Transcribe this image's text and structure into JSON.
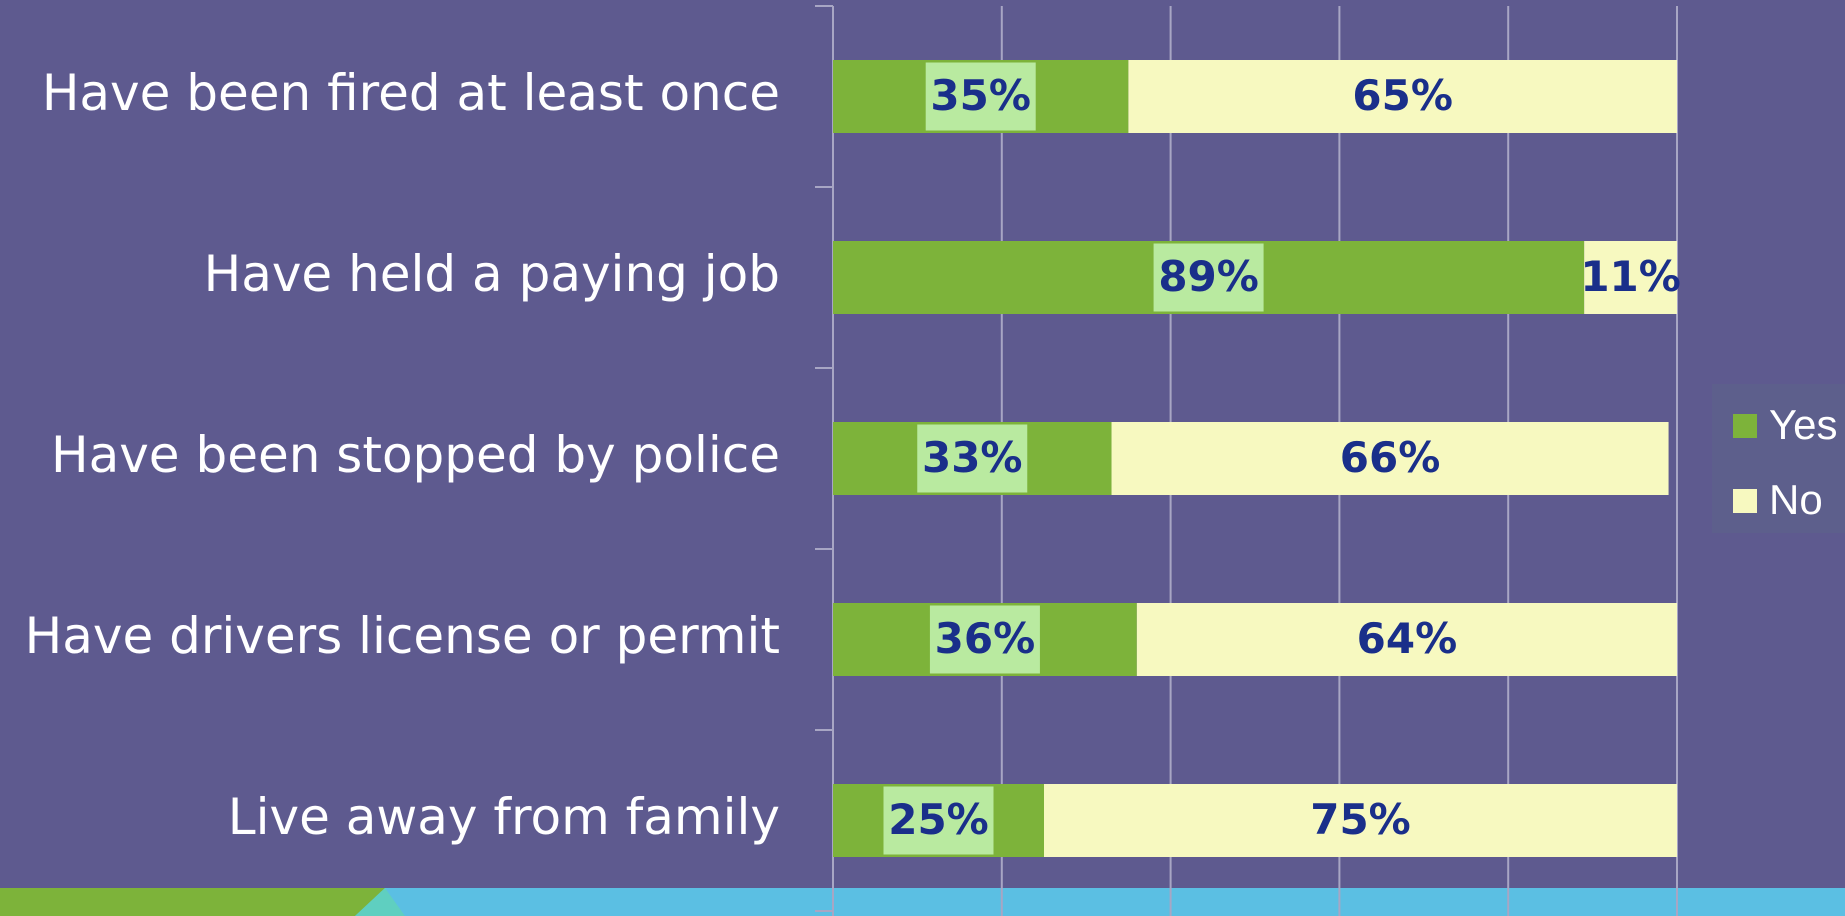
{
  "chart_data": {
    "type": "stacked_barh",
    "categories": [
      "Have been fired at least once",
      "Have held a paying job",
      "Have been stopped by police",
      "Have drivers license or permit",
      "Live away from family"
    ],
    "series": [
      {
        "name": "Yes",
        "color": "#7db33a",
        "values": [
          35,
          89,
          33,
          36,
          25
        ],
        "value_labels": [
          "35%",
          "89%",
          "33%",
          "36%",
          "25%"
        ]
      },
      {
        "name": "No",
        "color": "#f7f9c0",
        "values": [
          65,
          11,
          66,
          64,
          75
        ],
        "value_labels": [
          "65%",
          "11%",
          "66%",
          "64%",
          "75%"
        ]
      }
    ],
    "xlim": [
      0,
      100
    ],
    "xticks": [
      0,
      20,
      40,
      60,
      80,
      100
    ],
    "grid": true,
    "legend": "right"
  }
}
